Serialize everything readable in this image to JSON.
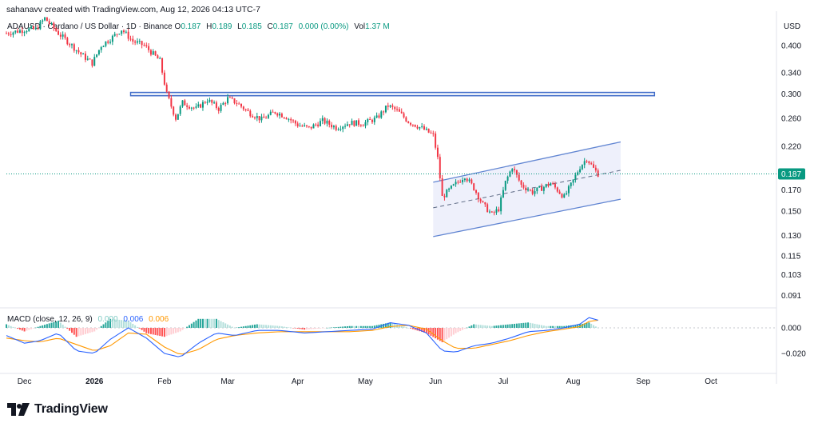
{
  "header": {
    "credit": "sahanavv created with TradingView.com, Aug 12, 2026 04:13 UTC-7"
  },
  "legend": {
    "symbol": "ADAUSD · Cardano / US Dollar · 1D · Binance",
    "open_label": "O",
    "open": "0.187",
    "high_label": "H",
    "high": "0.189",
    "low_label": "L",
    "low": "0.185",
    "close_label": "C",
    "close": "0.187",
    "change": "0.000 (0.00%)",
    "vol_label": "Vol",
    "vol": "1.37 M"
  },
  "price_axis": {
    "unit": "USD",
    "current_price": "0.187"
  },
  "macd_legend": {
    "label": "MACD (close, 12, 26, 9)",
    "hist": "0.000",
    "macd": "0.006",
    "signal": "0.006"
  },
  "branding": {
    "logo_text": "TradingView"
  },
  "colors": {
    "up": "#089981",
    "down": "#f23645",
    "macd": "#2962ff",
    "signal": "#ff9800",
    "annotation": "#3d6ac8",
    "channel_fill": "#eef0fb",
    "grid": "#f0f3fa"
  },
  "chart_data": [
    {
      "type": "candlestick",
      "y_scale": "log",
      "ylim": [
        0.085,
        0.49
      ],
      "y_ticks": [
        "0.400",
        "0.340",
        "0.300",
        "0.260",
        "0.220",
        "0.170",
        "0.150",
        "0.130",
        "0.115",
        "0.103",
        "0.091"
      ],
      "y_tick_values": [
        0.4,
        0.34,
        0.3,
        0.26,
        0.22,
        0.17,
        0.15,
        0.13,
        0.115,
        0.103,
        0.091
      ],
      "x_ticks": [
        "Dec",
        "2026",
        "Feb",
        "Mar",
        "Apr",
        "May",
        "Jun",
        "Jul",
        "Aug",
        "Sep",
        "Oct"
      ],
      "x_tick_dates": [
        "2025-12-01",
        "2026-01-01",
        "2026-02-01",
        "2026-03-01",
        "2026-04-01",
        "2026-05-01",
        "2026-06-01",
        "2026-07-01",
        "2026-08-01",
        "2026-09-01",
        "2026-10-01"
      ],
      "x_range": [
        "2025-11-23",
        "2026-10-30"
      ],
      "last_date": "2026-08-12",
      "price_path": [
        [
          "2025-11-23",
          0.43
        ],
        [
          "2025-12-02",
          0.44
        ],
        [
          "2025-12-06",
          0.44
        ],
        [
          "2025-12-10",
          0.47
        ],
        [
          "2025-12-16",
          0.43
        ],
        [
          "2025-12-20",
          0.41
        ],
        [
          "2025-12-26",
          0.38
        ],
        [
          "2025-12-31",
          0.36
        ],
        [
          "2026-01-04",
          0.4
        ],
        [
          "2026-01-09",
          0.42
        ],
        [
          "2026-01-13",
          0.44
        ],
        [
          "2026-01-18",
          0.41
        ],
        [
          "2026-01-23",
          0.4
        ],
        [
          "2026-01-27",
          0.38
        ],
        [
          "2026-01-30",
          0.365
        ],
        [
          "2026-02-02",
          0.3
        ],
        [
          "2026-02-06",
          0.26
        ],
        [
          "2026-02-09",
          0.285
        ],
        [
          "2026-02-15",
          0.275
        ],
        [
          "2026-02-20",
          0.29
        ],
        [
          "2026-02-25",
          0.275
        ],
        [
          "2026-03-01",
          0.292
        ],
        [
          "2026-03-05",
          0.285
        ],
        [
          "2026-03-10",
          0.27
        ],
        [
          "2026-03-16",
          0.258
        ],
        [
          "2026-03-22",
          0.27
        ],
        [
          "2026-03-27",
          0.262
        ],
        [
          "2026-04-01",
          0.25
        ],
        [
          "2026-04-06",
          0.245
        ],
        [
          "2026-04-12",
          0.256
        ],
        [
          "2026-04-18",
          0.246
        ],
        [
          "2026-04-24",
          0.253
        ],
        [
          "2026-04-30",
          0.252
        ],
        [
          "2026-05-06",
          0.26
        ],
        [
          "2026-05-11",
          0.28
        ],
        [
          "2026-05-15",
          0.272
        ],
        [
          "2026-05-20",
          0.255
        ],
        [
          "2026-05-26",
          0.245
        ],
        [
          "2026-05-31",
          0.235
        ],
        [
          "2026-06-02",
          0.205
        ],
        [
          "2026-06-04",
          0.163
        ],
        [
          "2026-06-08",
          0.172
        ],
        [
          "2026-06-14",
          0.185
        ],
        [
          "2026-06-18",
          0.172
        ],
        [
          "2026-06-22",
          0.156
        ],
        [
          "2026-06-26",
          0.147
        ],
        [
          "2026-06-29",
          0.152
        ],
        [
          "2026-07-02",
          0.178
        ],
        [
          "2026-07-05",
          0.195
        ],
        [
          "2026-07-09",
          0.175
        ],
        [
          "2026-07-14",
          0.168
        ],
        [
          "2026-07-18",
          0.172
        ],
        [
          "2026-07-22",
          0.177
        ],
        [
          "2026-07-25",
          0.17
        ],
        [
          "2026-07-28",
          0.163
        ],
        [
          "2026-07-31",
          0.175
        ],
        [
          "2026-08-04",
          0.195
        ],
        [
          "2026-08-07",
          0.205
        ],
        [
          "2026-08-10",
          0.193
        ],
        [
          "2026-08-12",
          0.187
        ]
      ],
      "annotations": {
        "resistance_zone": {
          "from": "2026-01-17",
          "to": "2026-09-06",
          "low": 0.297,
          "high": 0.303
        },
        "ascending_channel": {
          "upper": [
            [
              "2026-05-31",
              0.178
            ],
            [
              "2026-08-22",
              0.226
            ]
          ],
          "mid": [
            [
              "2026-05-31",
              0.153
            ],
            [
              "2026-08-22",
              0.191
            ]
          ],
          "lower": [
            [
              "2026-05-31",
              0.129
            ],
            [
              "2026-08-22",
              0.161
            ]
          ]
        }
      }
    },
    {
      "type": "line",
      "name": "MACD (close, 12, 26, 9)",
      "ylim": [
        -0.035,
        0.015
      ],
      "y_ticks": [
        "0.000",
        "−0.020"
      ],
      "y_tick_values": [
        0.0,
        -0.02
      ],
      "series": [
        {
          "name": "MACD",
          "x": [
            "2025-11-23",
            "2025-12-01",
            "2025-12-08",
            "2025-12-16",
            "2025-12-24",
            "2026-01-01",
            "2026-01-08",
            "2026-01-16",
            "2026-01-24",
            "2026-02-01",
            "2026-02-08",
            "2026-02-16",
            "2026-02-24",
            "2026-03-04",
            "2026-03-14",
            "2026-03-24",
            "2026-04-04",
            "2026-04-14",
            "2026-04-24",
            "2026-05-04",
            "2026-05-12",
            "2026-05-20",
            "2026-05-28",
            "2026-06-04",
            "2026-06-10",
            "2026-06-18",
            "2026-06-26",
            "2026-07-04",
            "2026-07-12",
            "2026-07-20",
            "2026-07-28",
            "2026-08-04",
            "2026-08-08",
            "2026-08-12"
          ],
          "values": [
            -0.006,
            -0.012,
            -0.01,
            -0.004,
            -0.018,
            -0.02,
            -0.009,
            0.0,
            -0.008,
            -0.02,
            -0.023,
            -0.012,
            -0.004,
            -0.006,
            -0.002,
            -0.002,
            -0.004,
            -0.003,
            -0.002,
            -0.001,
            0.004,
            0.002,
            -0.004,
            -0.018,
            -0.019,
            -0.014,
            -0.012,
            -0.008,
            -0.003,
            -0.002,
            0.0,
            0.003,
            0.008,
            0.006
          ]
        },
        {
          "name": "Signal",
          "x": [
            "2025-11-23",
            "2025-12-01",
            "2025-12-08",
            "2025-12-16",
            "2025-12-24",
            "2026-01-01",
            "2026-01-08",
            "2026-01-16",
            "2026-01-24",
            "2026-02-01",
            "2026-02-08",
            "2026-02-16",
            "2026-02-24",
            "2026-03-04",
            "2026-03-14",
            "2026-03-24",
            "2026-04-04",
            "2026-04-14",
            "2026-04-24",
            "2026-05-04",
            "2026-05-12",
            "2026-05-20",
            "2026-05-28",
            "2026-06-04",
            "2026-06-10",
            "2026-06-18",
            "2026-06-26",
            "2026-07-04",
            "2026-07-12",
            "2026-07-20",
            "2026-07-28",
            "2026-08-04",
            "2026-08-08",
            "2026-08-12"
          ],
          "values": [
            -0.008,
            -0.01,
            -0.011,
            -0.008,
            -0.013,
            -0.018,
            -0.014,
            -0.004,
            -0.005,
            -0.015,
            -0.021,
            -0.017,
            -0.009,
            -0.006,
            -0.004,
            -0.003,
            -0.003,
            -0.003,
            -0.003,
            -0.002,
            0.001,
            0.002,
            -0.001,
            -0.01,
            -0.016,
            -0.016,
            -0.013,
            -0.01,
            -0.006,
            -0.003,
            -0.001,
            0.001,
            0.005,
            0.006
          ]
        }
      ]
    }
  ]
}
